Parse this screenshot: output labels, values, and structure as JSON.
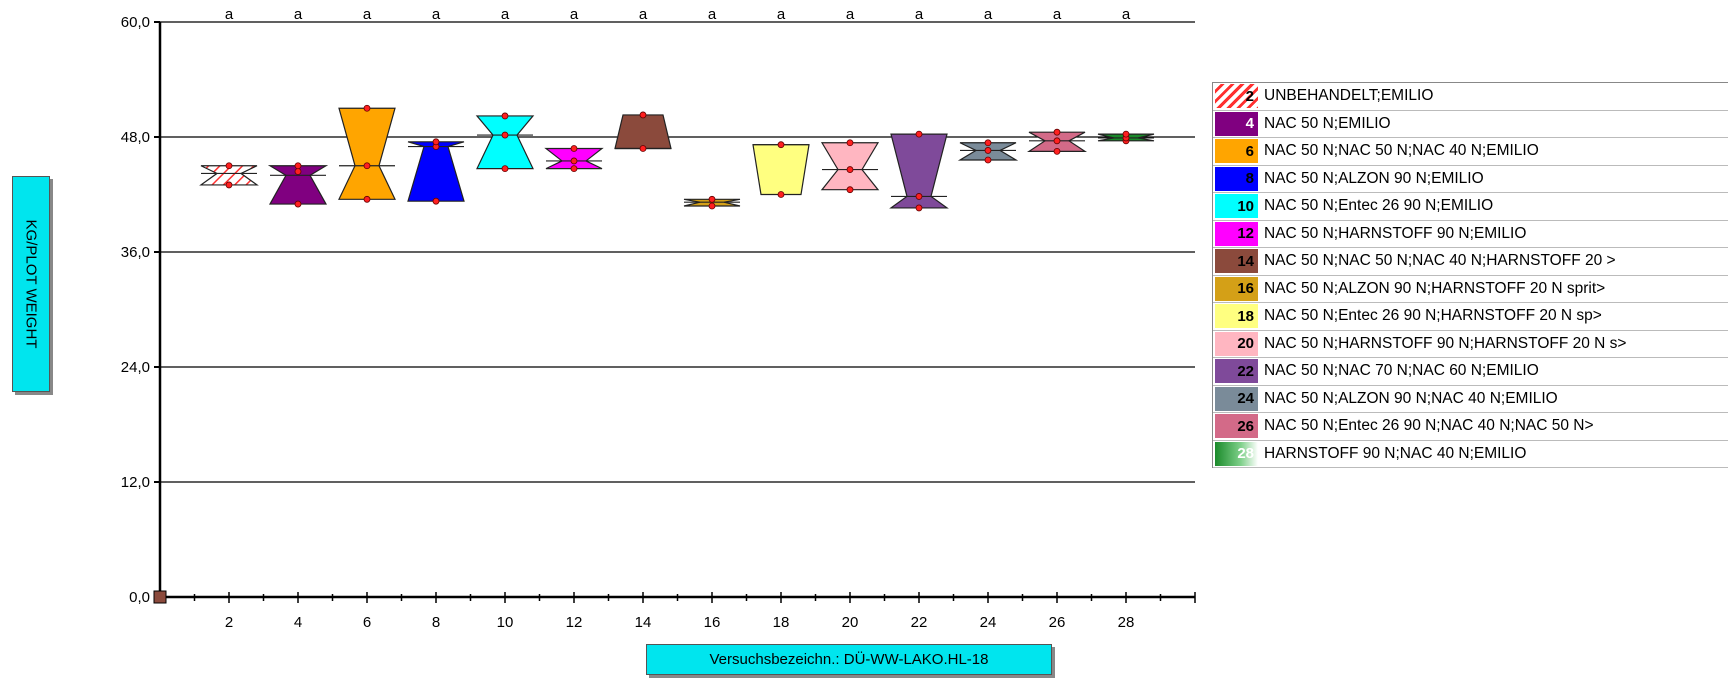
{
  "chart_data": {
    "type": "box",
    "ylabel": "KG/PLOT WEIGHT",
    "xlabel": "Versuchsbezeichn.: DÜ-WW-LAKO.HL-18",
    "ylim": [
      0,
      60
    ],
    "yticks": [
      "0,0",
      "12,0",
      "24,0",
      "36,0",
      "48,0",
      "60,0"
    ],
    "ytick_values": [
      0,
      12,
      24,
      36,
      48,
      60
    ],
    "xticks": [
      "2",
      "4",
      "6",
      "8",
      "10",
      "12",
      "14",
      "16",
      "18",
      "20",
      "22",
      "24",
      "26",
      "28"
    ],
    "xlim": [
      0,
      30
    ],
    "grid": "horizontal",
    "legend_position": "right",
    "series": [
      {
        "id": "2",
        "name": "UNBEHANDELT;EMILIO",
        "color": "#ffffff",
        "hatch": true,
        "num_color": "#000000",
        "min": 43.0,
        "max": 45.0,
        "median": 44.2,
        "points": [
          43.0,
          45.0
        ],
        "group": "a"
      },
      {
        "id": "4",
        "name": "NAC 50 N;EMILIO",
        "color": "#800080",
        "hatch": false,
        "num_color": "#ffffff",
        "min": 41.0,
        "max": 45.0,
        "median": 44.0,
        "points": [
          41.0,
          44.4,
          45.0
        ],
        "group": "a"
      },
      {
        "id": "6",
        "name": "NAC 50 N;NAC 50 N;NAC 40 N;EMILIO",
        "color": "#ffa500",
        "hatch": false,
        "num_color": "#000000",
        "min": 41.5,
        "max": 51.0,
        "median": 45.0,
        "points": [
          41.5,
          45.0,
          51.0
        ],
        "group": "a"
      },
      {
        "id": "8",
        "name": "NAC 50 N;ALZON 90 N;EMILIO",
        "color": "#0000ff",
        "hatch": false,
        "num_color": "#000000",
        "min": 41.3,
        "max": 47.5,
        "median": 47.0,
        "points": [
          41.3,
          47.0,
          47.5
        ],
        "group": "a"
      },
      {
        "id": "10",
        "name": "NAC 50 N;Entec 26 90 N;EMILIO",
        "color": "#00ffff",
        "hatch": false,
        "num_color": "#000000",
        "min": 44.7,
        "max": 50.2,
        "median": 48.2,
        "points": [
          44.7,
          48.2,
          50.2
        ],
        "group": "a"
      },
      {
        "id": "12",
        "name": "NAC 50 N;HARNSTOFF 90 N;EMILIO",
        "color": "#ff00ff",
        "hatch": false,
        "num_color": "#000000",
        "min": 44.7,
        "max": 46.8,
        "median": 45.5,
        "points": [
          44.7,
          45.5,
          46.8
        ],
        "group": "a"
      },
      {
        "id": "14",
        "name": "NAC 50 N;NAC 50 N;NAC 40 N;HARNSTOFF 20 >",
        "color": "#8b4a3c",
        "hatch": false,
        "num_color": "#000000",
        "min": 46.8,
        "max": 50.3,
        "median": 46.8,
        "points": [
          46.8,
          50.3
        ],
        "group": "a"
      },
      {
        "id": "16",
        "name": "NAC 50 N;ALZON 90 N;HARNSTOFF 20 N sprit>",
        "color": "#d4a017",
        "hatch": false,
        "num_color": "#000000",
        "min": 40.8,
        "max": 41.5,
        "median": 41.2,
        "points": [
          40.8,
          41.5
        ],
        "group": "a"
      },
      {
        "id": "18",
        "name": "NAC 50 N;Entec 26 90 N;HARNSTOFF 20 N sp>",
        "color": "#ffff80",
        "hatch": false,
        "num_color": "#000000",
        "min": 42.0,
        "max": 47.2,
        "median": 47.2,
        "points": [
          42.0,
          47.2
        ],
        "group": "a"
      },
      {
        "id": "20",
        "name": "NAC 50 N;HARNSTOFF 90 N;HARNSTOFF 20 N s>",
        "color": "#ffb6c1",
        "hatch": false,
        "num_color": "#000000",
        "min": 42.5,
        "max": 47.4,
        "median": 44.6,
        "points": [
          42.5,
          44.6,
          47.4
        ],
        "group": "a"
      },
      {
        "id": "22",
        "name": "NAC 50 N;NAC 70 N;NAC 60 N;EMILIO",
        "color": "#7f4a9a",
        "hatch": false,
        "num_color": "#000000",
        "min": 40.6,
        "max": 48.3,
        "median": 41.8,
        "points": [
          40.6,
          41.8,
          48.3
        ],
        "group": "a"
      },
      {
        "id": "24",
        "name": "NAC 50 N;ALZON 90 N;NAC 40 N;EMILIO",
        "color": "#7a8b99",
        "hatch": false,
        "num_color": "#000000",
        "min": 45.6,
        "max": 47.4,
        "median": 46.6,
        "points": [
          45.6,
          46.6,
          47.4
        ],
        "group": "a"
      },
      {
        "id": "26",
        "name": "NAC 50 N;Entec 26 90 N;NAC 40 N;NAC 50 N>",
        "color": "#d36a88",
        "hatch": false,
        "num_color": "#000000",
        "min": 46.5,
        "max": 48.5,
        "median": 47.6,
        "points": [
          46.5,
          47.6,
          48.5
        ],
        "group": "a"
      },
      {
        "id": "28",
        "name": "HARNSTOFF 90 N;NAC 40 N;EMILIO",
        "color": "#1a8a2a",
        "hatch": false,
        "num_color": "#ffffff",
        "min": 47.6,
        "max": 48.3,
        "median": 47.9,
        "points": [
          47.6,
          47.9,
          48.3
        ],
        "group": "a"
      }
    ]
  }
}
